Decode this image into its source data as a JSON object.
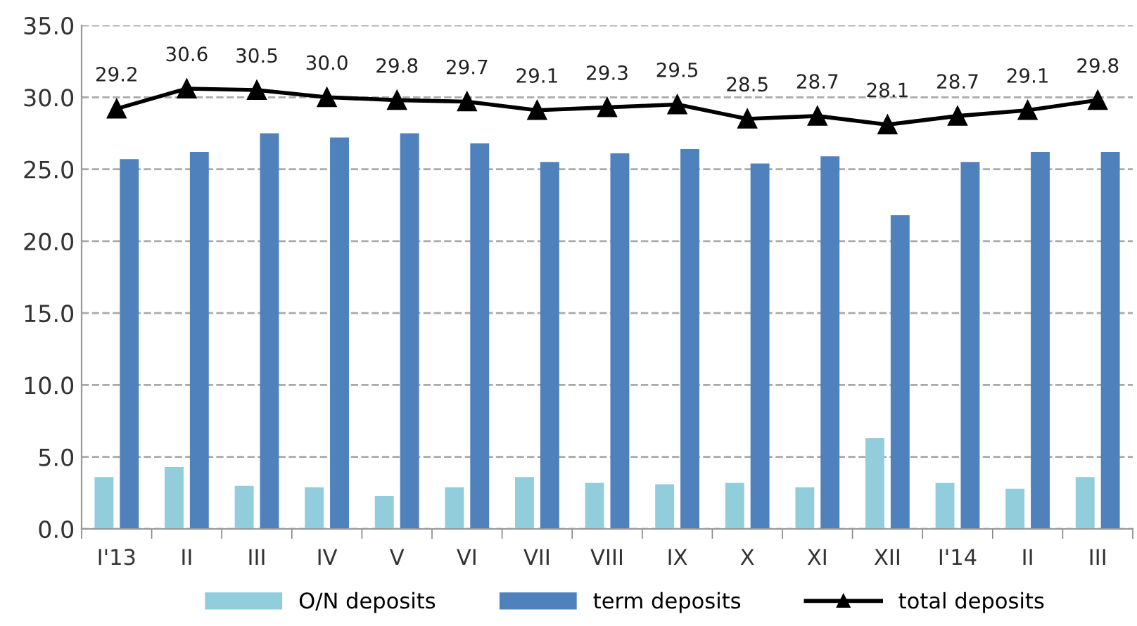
{
  "chart_data": {
    "type": "bar",
    "categories": [
      "I'13",
      "II",
      "III",
      "IV",
      "V",
      "VI",
      "VII",
      "VIII",
      "IX",
      "X",
      "XI",
      "XII",
      "I'14",
      "II",
      "III"
    ],
    "series": [
      {
        "name": "O/N deposits",
        "color": "#92cddc",
        "values": [
          3.6,
          4.3,
          3.0,
          2.9,
          2.3,
          2.9,
          3.6,
          3.2,
          3.1,
          3.2,
          2.9,
          6.3,
          3.2,
          2.8,
          3.6
        ]
      },
      {
        "name": "term deposits",
        "color": "#4f81bd",
        "values": [
          25.7,
          26.2,
          27.5,
          27.2,
          27.5,
          26.8,
          25.5,
          26.1,
          26.4,
          25.4,
          25.9,
          21.8,
          25.5,
          26.2,
          26.2
        ]
      },
      {
        "name": "total deposits",
        "type": "line",
        "color": "#000000",
        "marker": "triangle",
        "values": [
          29.2,
          30.6,
          30.5,
          30.0,
          29.8,
          29.7,
          29.1,
          29.3,
          29.5,
          28.5,
          28.7,
          28.1,
          28.7,
          29.1,
          29.8
        ],
        "value_labels": [
          "29.2",
          "30.6",
          "30.5",
          "30.0",
          "29.8",
          "29.7",
          "29.1",
          "29.3",
          "29.5",
          "28.5",
          "28.7",
          "28.1",
          "28.7",
          "29.1",
          "29.8"
        ]
      }
    ],
    "ylim": [
      0,
      35
    ],
    "yticks": [
      {
        "value": 0,
        "label": "0.0"
      },
      {
        "value": 5,
        "label": "5.0"
      },
      {
        "value": 10,
        "label": "10.0"
      },
      {
        "value": 15,
        "label": "15.0"
      },
      {
        "value": 20,
        "label": "20.0"
      },
      {
        "value": 25,
        "label": "25.0"
      },
      {
        "value": 30,
        "label": "30.0"
      },
      {
        "value": 35,
        "label": "35.0"
      }
    ],
    "grid": "y",
    "legend": "bottom"
  }
}
